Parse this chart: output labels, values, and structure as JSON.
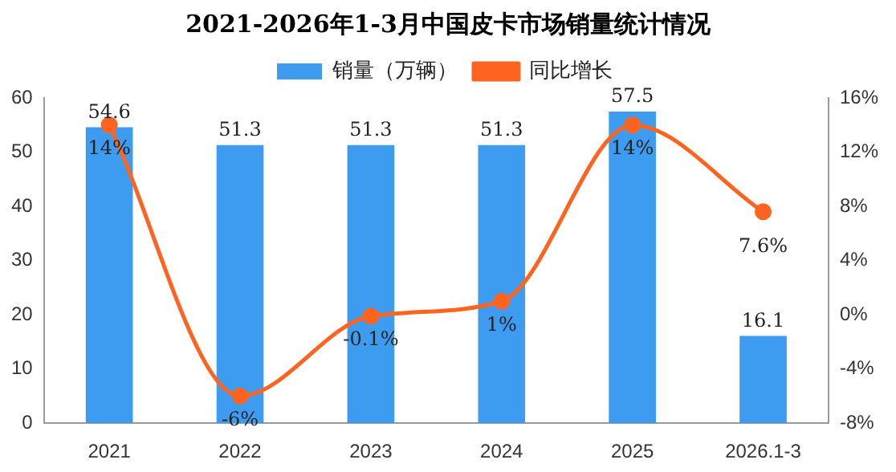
{
  "chart_data": {
    "type": "bar",
    "title": "2021-2026年1-3月中国皮卡市场销量统计情况",
    "categories": [
      "2021",
      "2022",
      "2023",
      "2024",
      "2025",
      "2026.1-3"
    ],
    "series": [
      {
        "name": "销量（万辆）",
        "color": "#3d9cf0",
        "values": [
          54.6,
          51.3,
          51.3,
          51.3,
          57.5,
          16.1
        ],
        "value_labels": [
          "54.6",
          "51.3",
          "51.3",
          "51.3",
          "57.5",
          "16.1"
        ]
      },
      {
        "name": "同比增长",
        "type": "line",
        "axis": "y2",
        "color": "#ff6320",
        "values": [
          14,
          -6,
          -0.1,
          1,
          14,
          7.6
        ],
        "value_labels": [
          "14%",
          "-6%",
          "-0.1%",
          "1%",
          "14%",
          "7.6%"
        ]
      }
    ],
    "ylim": [
      0,
      60
    ],
    "yticks": [
      0,
      10,
      20,
      30,
      40,
      50,
      60
    ],
    "y2lim": [
      -8,
      16
    ],
    "y2ticks": [
      {
        "value": -8,
        "label": "-8%"
      },
      {
        "value": -4,
        "label": "-4%"
      },
      {
        "value": 0,
        "label": "0%"
      },
      {
        "value": 4,
        "label": "4%"
      },
      {
        "value": 8,
        "label": "8%"
      },
      {
        "value": 12,
        "label": "12%"
      },
      {
        "value": 16,
        "label": "16%"
      }
    ],
    "grid": false,
    "legend": "top",
    "marker": "circle",
    "line_style": "solid"
  }
}
